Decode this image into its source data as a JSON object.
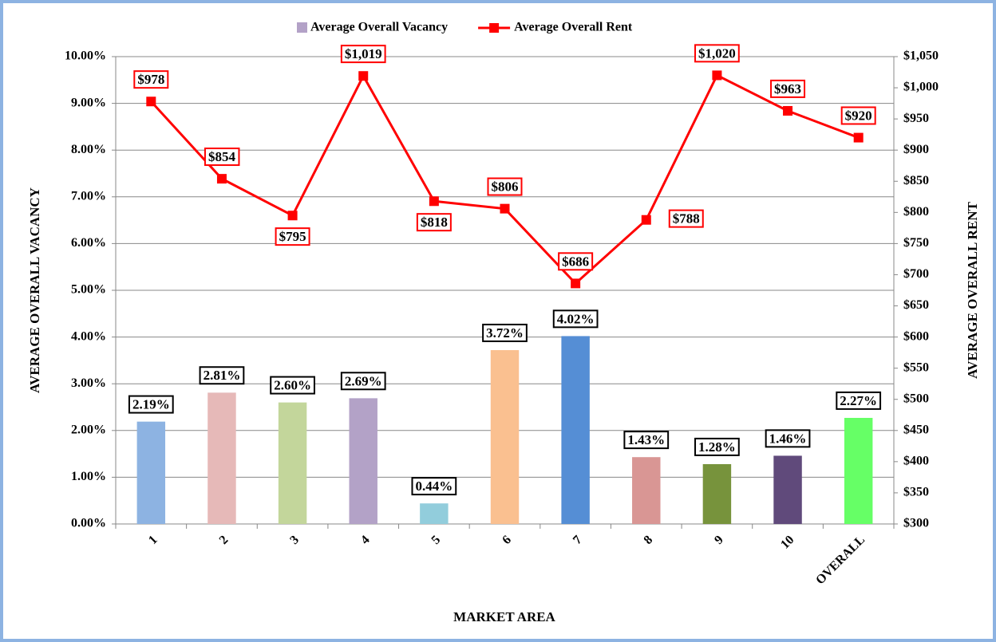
{
  "chart_data": {
    "type": "bar",
    "x_label": "MARKET AREA",
    "y_label": "AVERAGE OVERALL VACANCY",
    "y2_label": "AVERAGE OVERALL RENT",
    "categories": [
      "1",
      "2",
      "3",
      "4",
      "5",
      "6",
      "7",
      "8",
      "9",
      "10",
      "OVERALL"
    ],
    "series": [
      {
        "name": "Average Overall Vacancy",
        "type": "bar",
        "color": "#b3a2c7",
        "colors": [
          "#8db3e2",
          "#e6b9b8",
          "#c3d69b",
          "#b3a2c7",
          "#92cddc",
          "#fac090",
          "#558ed5",
          "#d99694",
          "#77933c",
          "#604a7b",
          "#66ff66"
        ],
        "values": [
          2.19,
          2.81,
          2.6,
          2.69,
          0.44,
          3.72,
          4.02,
          1.43,
          1.28,
          1.46,
          2.27
        ],
        "value_labels": [
          "2.19%",
          "2.81%",
          "2.60%",
          "2.69%",
          "0.44%",
          "3.72%",
          "4.02%",
          "1.43%",
          "1.28%",
          "1.46%",
          "2.27%"
        ]
      },
      {
        "name": "Average Overall Rent",
        "type": "line",
        "axis": "y2",
        "color": "#ff0000",
        "values": [
          978,
          854,
          795,
          1019,
          818,
          806,
          686,
          788,
          1020,
          963,
          920
        ],
        "value_labels": [
          "$978",
          "$854",
          "$795",
          "$1,019",
          "$818",
          "$806",
          "$686",
          "$788",
          "$1,020",
          "$963",
          "$920"
        ]
      }
    ],
    "ylim": [
      0,
      10
    ],
    "yticks": [
      {
        "value": 0,
        "label": "0.00%"
      },
      {
        "value": 1,
        "label": "1.00%"
      },
      {
        "value": 2,
        "label": "2.00%"
      },
      {
        "value": 3,
        "label": "3.00%"
      },
      {
        "value": 4,
        "label": "4.00%"
      },
      {
        "value": 5,
        "label": "5.00%"
      },
      {
        "value": 6,
        "label": "6.00%"
      },
      {
        "value": 7,
        "label": "7.00%"
      },
      {
        "value": 8,
        "label": "8.00%"
      },
      {
        "value": 9,
        "label": "9.00%"
      },
      {
        "value": 10,
        "label": "10.00%"
      }
    ],
    "y2lim": [
      300,
      1050
    ],
    "y2ticks": [
      {
        "value": 300,
        "label": "$300"
      },
      {
        "value": 350,
        "label": "$350"
      },
      {
        "value": 400,
        "label": "$400"
      },
      {
        "value": 450,
        "label": "$450"
      },
      {
        "value": 500,
        "label": "$500"
      },
      {
        "value": 550,
        "label": "$550"
      },
      {
        "value": 600,
        "label": "$600"
      },
      {
        "value": 650,
        "label": "$650"
      },
      {
        "value": 700,
        "label": "$700"
      },
      {
        "value": 750,
        "label": "$750"
      },
      {
        "value": 800,
        "label": "$800"
      },
      {
        "value": 850,
        "label": "$850"
      },
      {
        "value": 900,
        "label": "$900"
      },
      {
        "value": 950,
        "label": "$950"
      },
      {
        "value": 1000,
        "label": "$1,000"
      },
      {
        "value": 1050,
        "label": "$1,050"
      }
    ],
    "grid": true,
    "legend": "top"
  }
}
